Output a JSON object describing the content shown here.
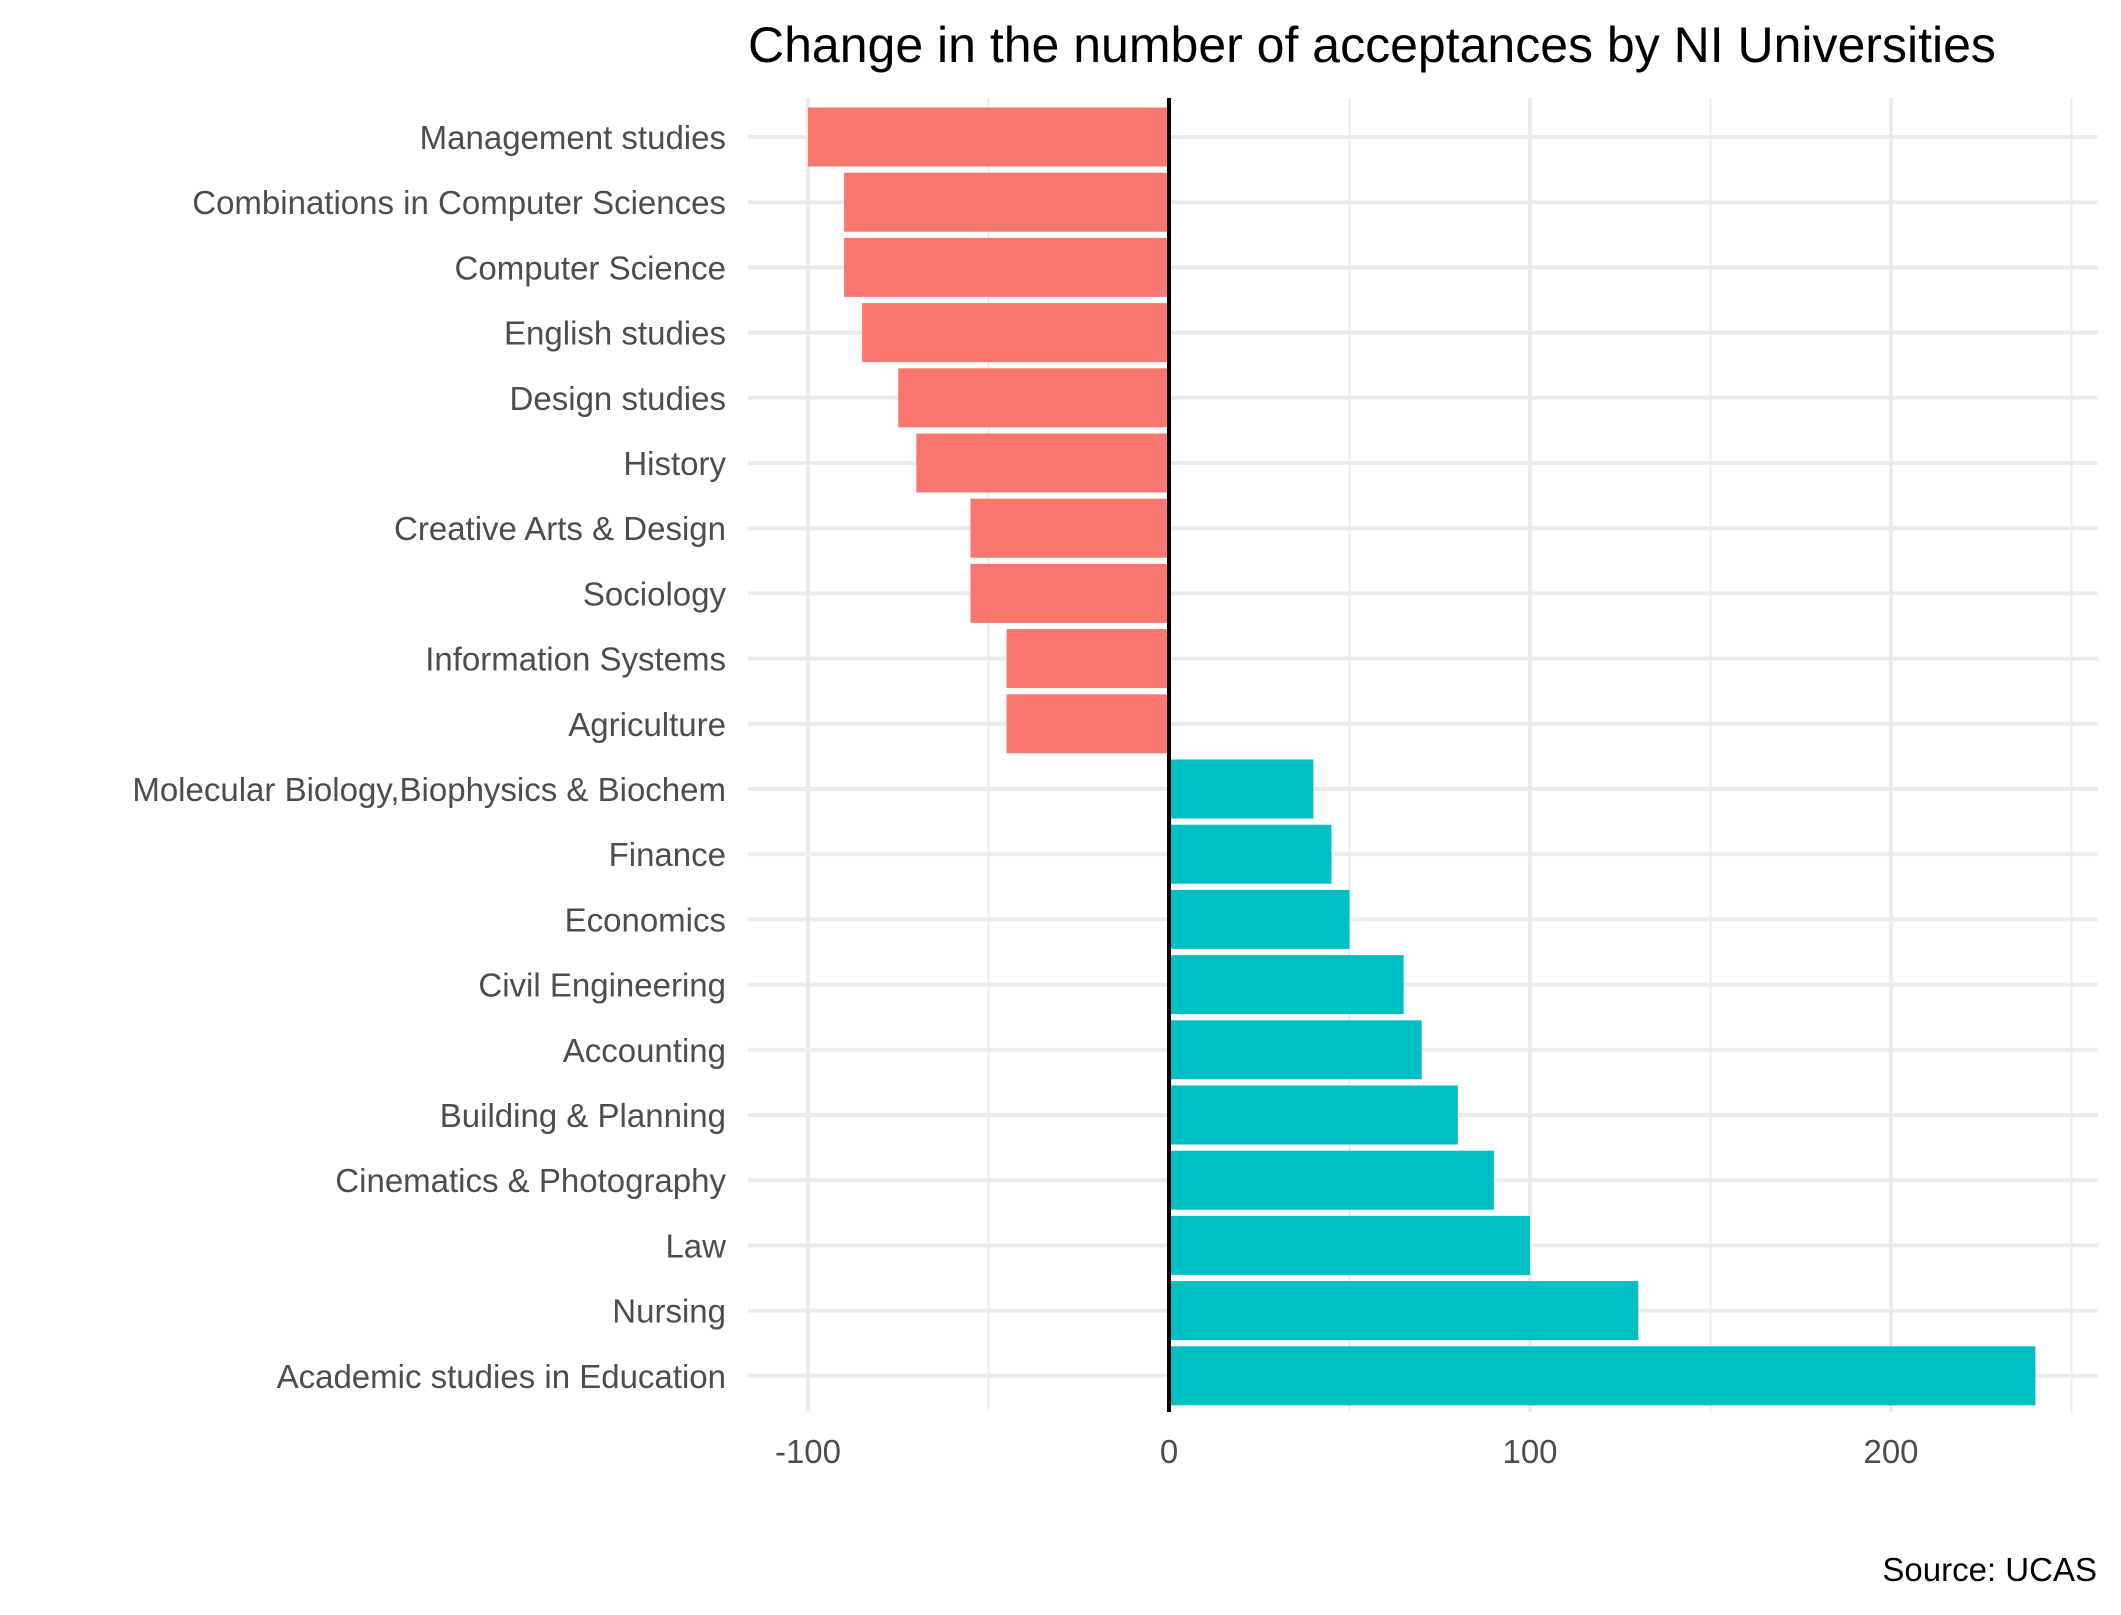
{
  "chart_data": {
    "type": "bar",
    "orientation": "horizontal",
    "title": "Change in the number of acceptances by NI Universities",
    "caption": "Source: UCAS",
    "xlabel": "",
    "ylabel": "",
    "xlim": [
      -100,
      250
    ],
    "x_ticks": [
      -100,
      0,
      100,
      200
    ],
    "x_tick_labels": [
      "-100",
      "0",
      "100",
      "200"
    ],
    "grid": true,
    "legend": "none",
    "categories": [
      "Management studies",
      "Combinations in Computer Sciences",
      "Computer Science",
      "English studies",
      "Design studies",
      "History",
      "Creative Arts & Design",
      "Sociology",
      "Information Systems",
      "Agriculture",
      "Molecular Biology,Biophysics & Biochem",
      "Finance",
      "Economics",
      "Civil Engineering",
      "Accounting",
      "Building & Planning",
      "Cinematics & Photography",
      "Law",
      "Nursing",
      "Academic studies in Education"
    ],
    "values": [
      -100,
      -90,
      -90,
      -85,
      -75,
      -70,
      -55,
      -55,
      -45,
      -45,
      40,
      45,
      50,
      65,
      70,
      80,
      90,
      100,
      130,
      240
    ],
    "colors": {
      "negative": "#F8766D",
      "positive": "#00BFC4"
    }
  }
}
